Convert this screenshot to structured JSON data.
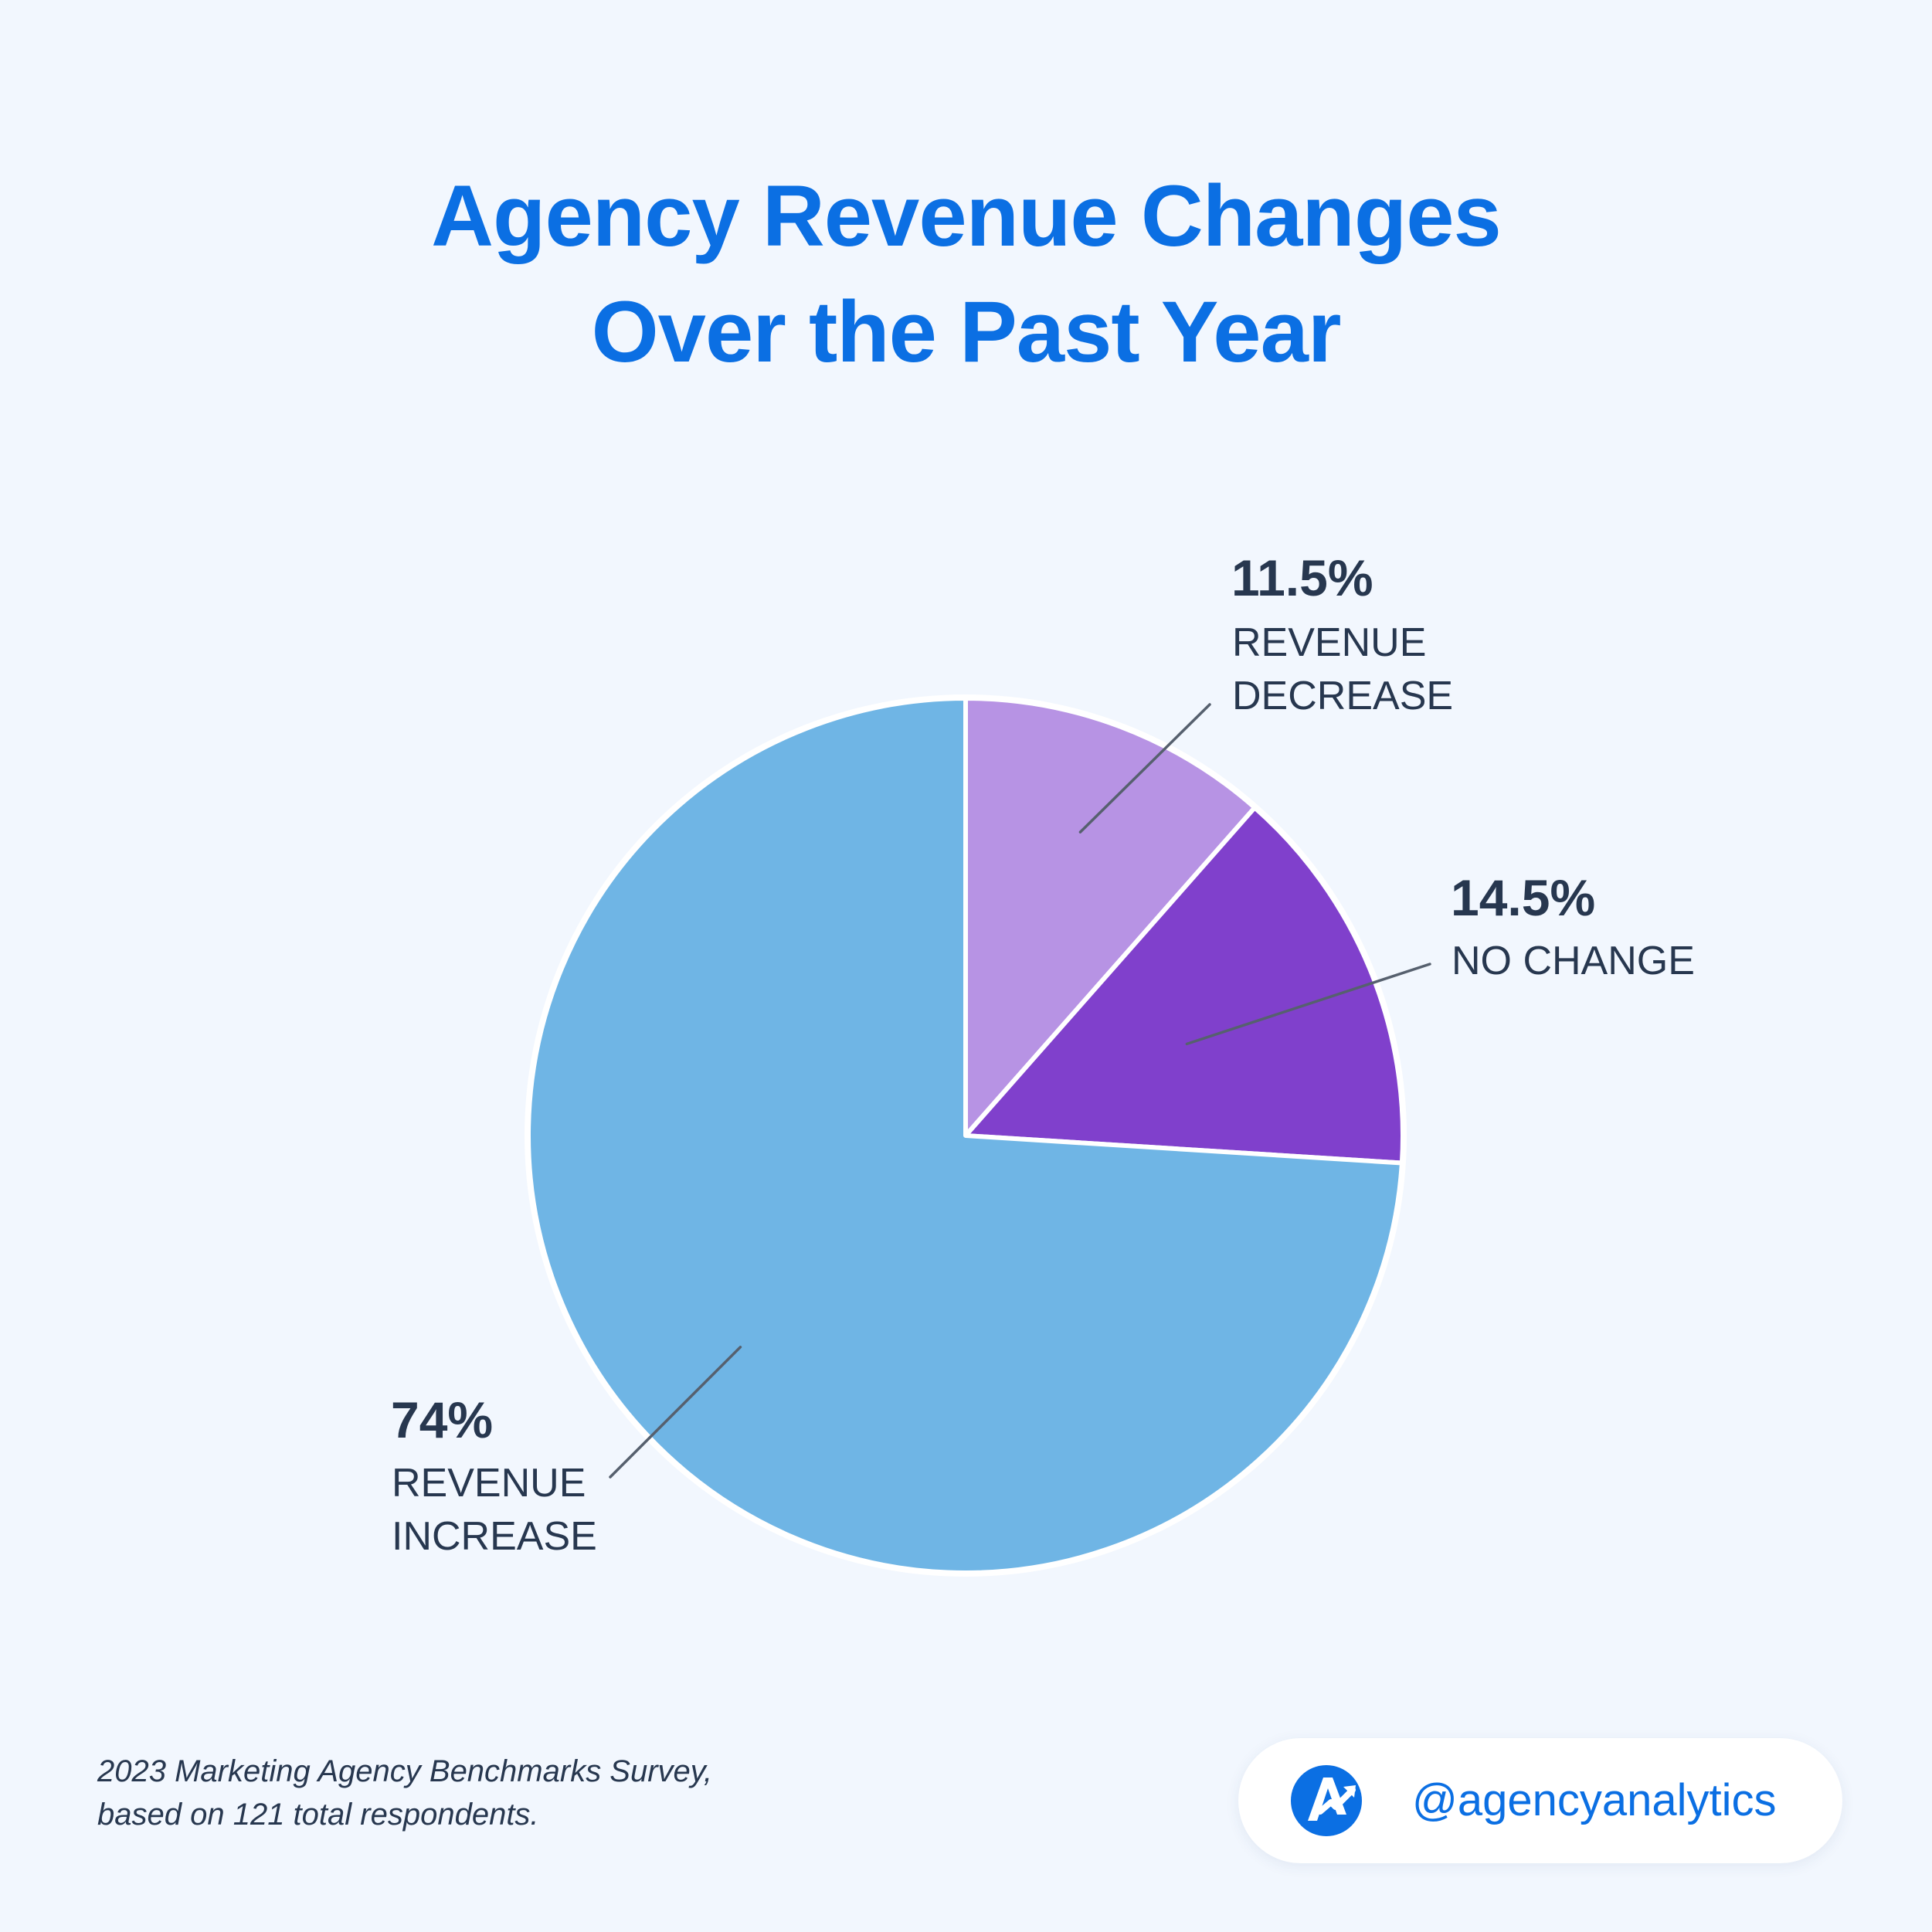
{
  "title": {
    "line1": "Agency Revenue Changes",
    "line2": "Over the Past Year"
  },
  "chart_data": {
    "type": "pie",
    "title": "Agency Revenue Changes Over the Past Year",
    "start_angle": "12 o'clock, clockwise",
    "slices": [
      {
        "value": 11.5,
        "value_label": "11.5%",
        "label_lines": [
          "REVENUE",
          "DECREASE"
        ],
        "color": "#b793e4"
      },
      {
        "value": 14.5,
        "value_label": "14.5%",
        "label_lines": [
          "NO CHANGE"
        ],
        "color": "#8040cc"
      },
      {
        "value": 74,
        "value_label": "74%",
        "label_lines": [
          "REVENUE",
          "INCREASE"
        ],
        "color": "#6fb5e5"
      }
    ],
    "slice_separator_color": "#ffffff",
    "leader_line_color": "#56606e",
    "legend": "none"
  },
  "footnote": {
    "line1": "2023 Marketing Agency Benchmarks Survey,",
    "line2": "based on 121 total respondents."
  },
  "branding": {
    "logo_icon": "agencyanalytics-logo-icon",
    "handle": "@agencyanalytics",
    "brand_color": "#0b6fe3"
  },
  "colors": {
    "background": "#f2f7fe",
    "title": "#0b6fe3",
    "text": "#27374f"
  }
}
